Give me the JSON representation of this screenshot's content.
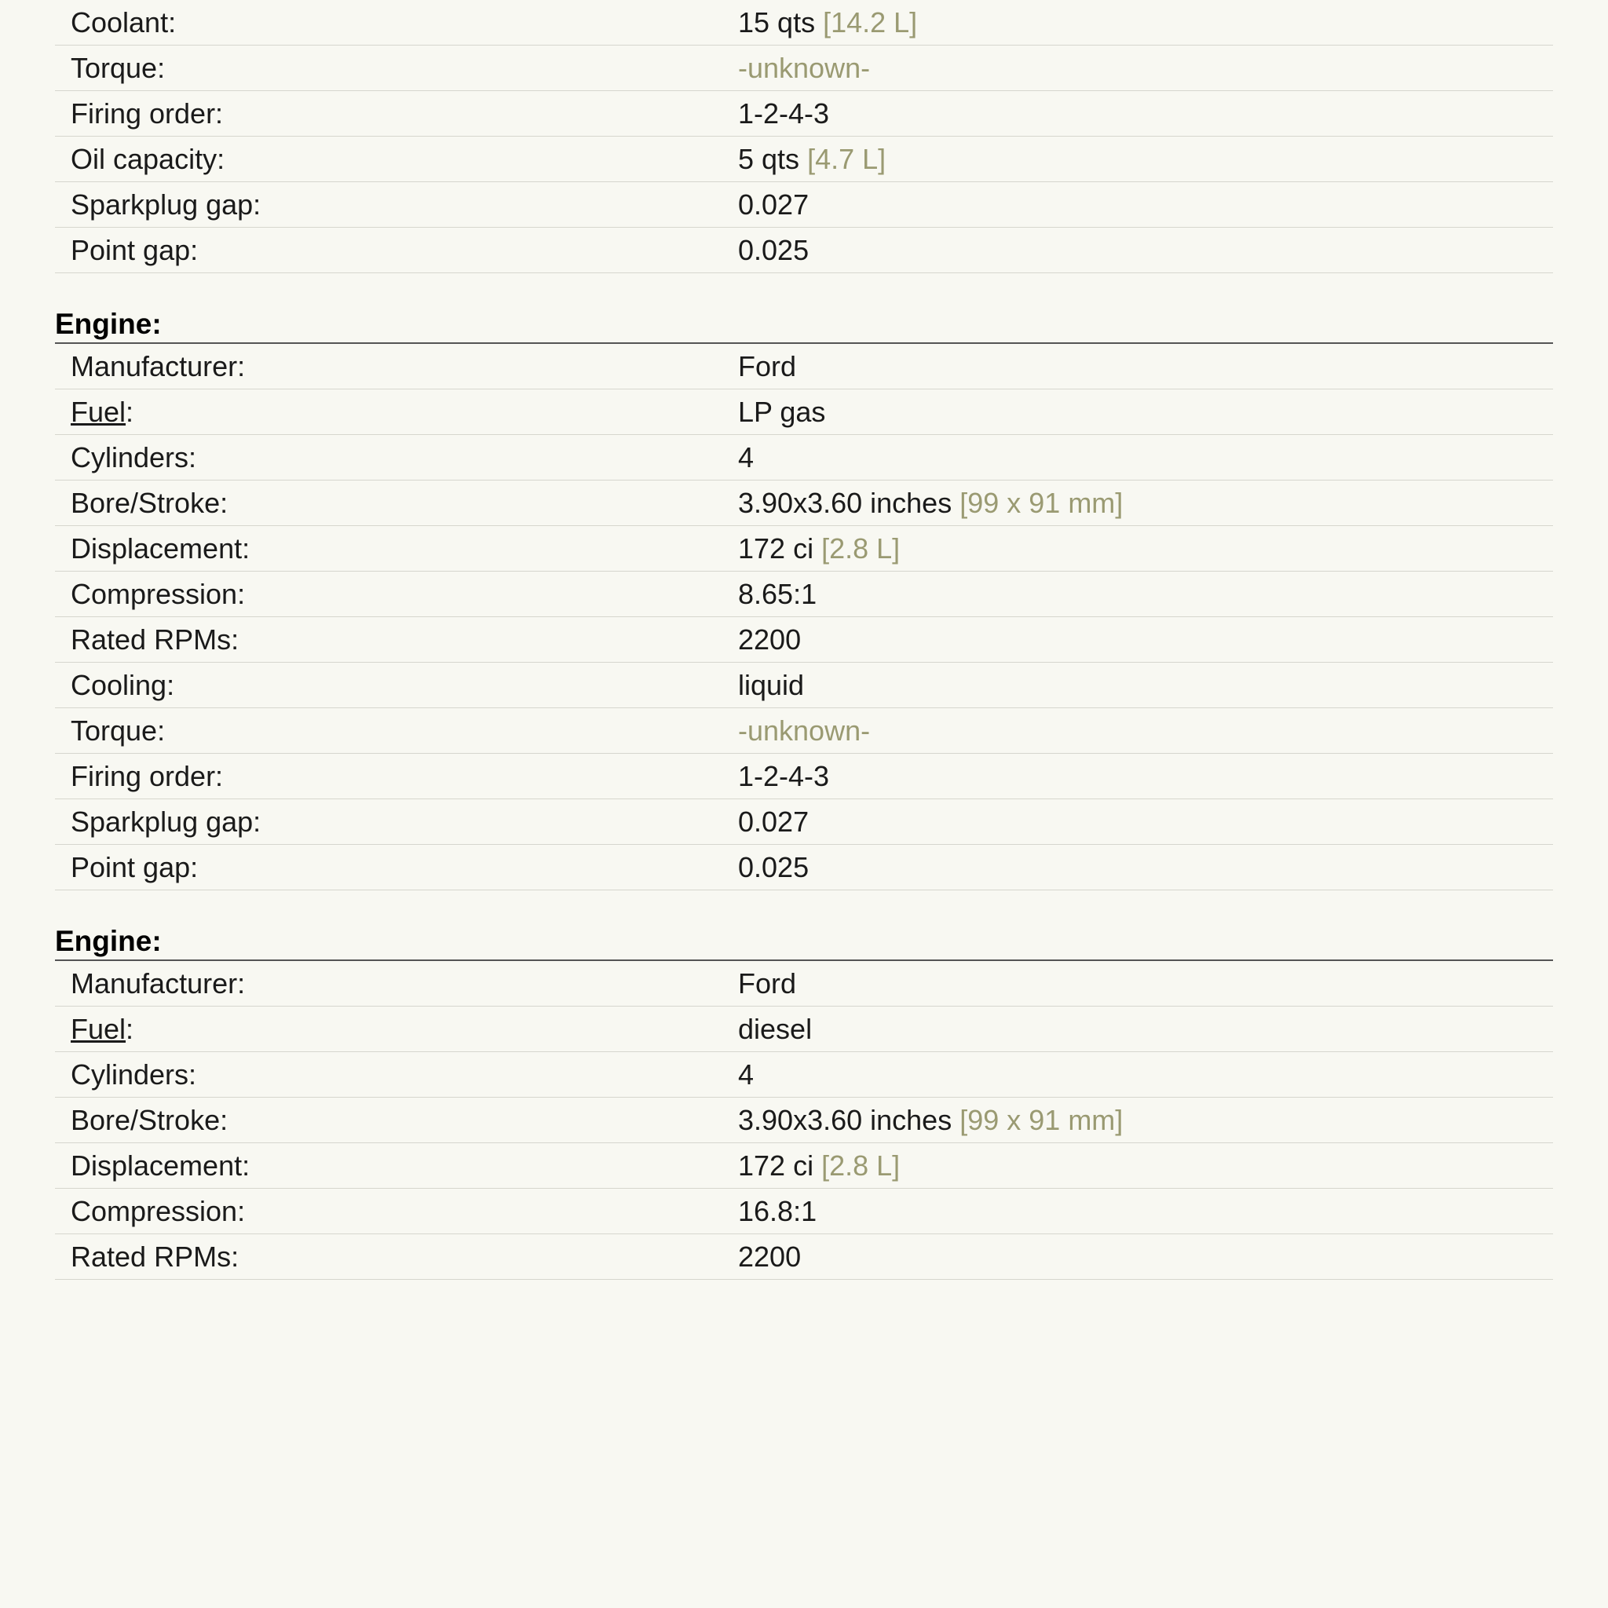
{
  "sections": [
    {
      "header": null,
      "rows": [
        {
          "label": "Coolant:",
          "value": "15 qts",
          "metric": "[14.2 L]"
        },
        {
          "label": "Torque:",
          "muted": "-unknown-"
        },
        {
          "label": "Firing order:",
          "value": "1-2-4-3"
        },
        {
          "label": "Oil capacity:",
          "value": "5 qts",
          "metric": "[4.7 L]"
        },
        {
          "label": "Sparkplug gap:",
          "value": "0.027"
        },
        {
          "label": "Point gap:",
          "value": "0.025"
        }
      ]
    },
    {
      "header": "Engine:",
      "rows": [
        {
          "label": "Manufacturer:",
          "value": "Ford"
        },
        {
          "label": "Fuel:",
          "link": true,
          "value": "LP gas"
        },
        {
          "label": "Cylinders:",
          "value": "4"
        },
        {
          "label": "Bore/Stroke:",
          "value": "3.90x3.60 inches",
          "metric": "[99 x 91 mm]"
        },
        {
          "label": "Displacement:",
          "value": "172 ci",
          "metric": "[2.8 L]"
        },
        {
          "label": "Compression:",
          "value": "8.65:1"
        },
        {
          "label": "Rated RPMs:",
          "value": "2200"
        },
        {
          "label": "Cooling:",
          "value": "liquid"
        },
        {
          "label": "Torque:",
          "muted": "-unknown-"
        },
        {
          "label": "Firing order:",
          "value": "1-2-4-3"
        },
        {
          "label": "Sparkplug gap:",
          "value": "0.027"
        },
        {
          "label": "Point gap:",
          "value": "0.025"
        }
      ]
    },
    {
      "header": "Engine:",
      "rows": [
        {
          "label": "Manufacturer:",
          "value": "Ford"
        },
        {
          "label": "Fuel:",
          "link": true,
          "value": "diesel"
        },
        {
          "label": "Cylinders:",
          "value": "4"
        },
        {
          "label": "Bore/Stroke:",
          "value": "3.90x3.60 inches",
          "metric": "[99 x 91 mm]"
        },
        {
          "label": "Displacement:",
          "value": "172 ci",
          "metric": "[2.8 L]"
        },
        {
          "label": "Compression:",
          "value": "16.8:1"
        },
        {
          "label": "Rated RPMs:",
          "value": "2200"
        }
      ]
    }
  ]
}
